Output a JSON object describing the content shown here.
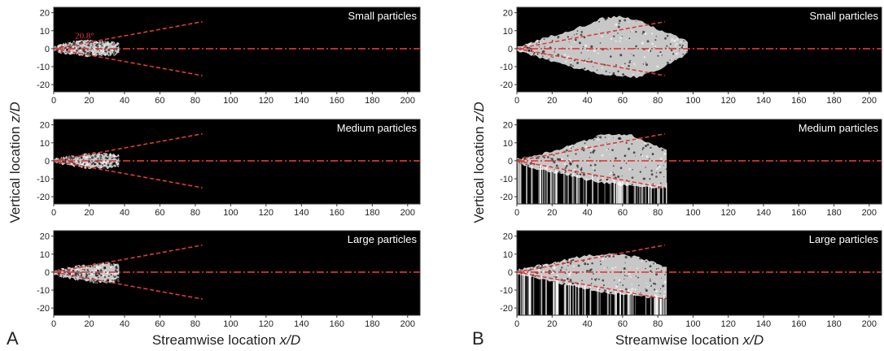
{
  "figure": {
    "panel_letters": [
      "A",
      "B"
    ],
    "xlabel_text": "Streamwise location ",
    "xlabel_var": "x/D",
    "ylabel_text": "Vertical location ",
    "ylabel_var": "z/D",
    "angle_annotation": "20.8°",
    "colors": {
      "background": "#000000",
      "particles": "#ffffff",
      "reference_lines": "#e03a3a"
    }
  },
  "chart_data": [
    {
      "type": "scatter",
      "panel": "A",
      "row": 1,
      "title": "Small particles",
      "x_ticks": [
        0,
        20,
        40,
        60,
        80,
        100,
        120,
        140,
        160,
        180,
        200
      ],
      "y_ticks": [
        20,
        10,
        0,
        -10,
        -20
      ],
      "xlim": [
        0,
        207
      ],
      "ylim": [
        -24,
        23
      ],
      "cloud": {
        "x_start": 0,
        "x_end": 37,
        "upper": [
          1,
          3,
          4,
          5,
          4,
          4,
          3
        ],
        "lower": [
          -1,
          -3,
          -3,
          -4,
          -4,
          -4,
          -3
        ]
      },
      "streaks": {
        "x_end": 0,
        "count": 0
      },
      "spread_lines": {
        "x_end": 84,
        "upper_z": 15,
        "lower_z": -15
      },
      "centerline_z": 0,
      "annotation": "20.8°"
    },
    {
      "type": "scatter",
      "panel": "A",
      "row": 2,
      "title": "Medium particles",
      "x_ticks": [
        0,
        20,
        40,
        60,
        80,
        100,
        120,
        140,
        160,
        180,
        200
      ],
      "y_ticks": [
        20,
        10,
        0,
        -10,
        -20
      ],
      "xlim": [
        0,
        207
      ],
      "ylim": [
        -24,
        23
      ],
      "cloud": {
        "x_start": 0,
        "x_end": 37,
        "upper": [
          1,
          2,
          3,
          4,
          4,
          4,
          3
        ],
        "lower": [
          -1,
          -2,
          -3,
          -4,
          -4,
          -4,
          -3
        ]
      },
      "streaks": {
        "x_end": 0,
        "count": 0
      },
      "spread_lines": {
        "x_end": 84,
        "upper_z": 15,
        "lower_z": -15
      },
      "centerline_z": 0
    },
    {
      "type": "scatter",
      "panel": "A",
      "row": 3,
      "title": "Large particles",
      "x_ticks": [
        0,
        20,
        40,
        60,
        80,
        100,
        120,
        140,
        160,
        180,
        200
      ],
      "y_ticks": [
        20,
        10,
        0,
        -10,
        -20
      ],
      "xlim": [
        0,
        207
      ],
      "ylim": [
        -24,
        23
      ],
      "cloud": {
        "x_start": 0,
        "x_end": 37,
        "upper": [
          1,
          2,
          3,
          4,
          5,
          5,
          4
        ],
        "lower": [
          -1,
          -3,
          -4,
          -5,
          -6,
          -6,
          -5
        ]
      },
      "streaks": {
        "x_end": 0,
        "count": 0
      },
      "spread_lines": {
        "x_end": 84,
        "upper_z": 15,
        "lower_z": -15
      },
      "centerline_z": 0
    },
    {
      "type": "scatter",
      "panel": "B",
      "row": 1,
      "title": "Small particles",
      "x_ticks": [
        0,
        20,
        40,
        60,
        80,
        100,
        120,
        140,
        160,
        180,
        200
      ],
      "y_ticks": [
        20,
        10,
        0,
        -10,
        -20
      ],
      "xlim": [
        0,
        207
      ],
      "ylim": [
        -24,
        23
      ],
      "cloud": {
        "x_start": 0,
        "x_end": 97,
        "upper": [
          1,
          4,
          7,
          10,
          13,
          17,
          18,
          16,
          12,
          8,
          4
        ],
        "lower": [
          -1,
          -4,
          -7,
          -10,
          -12,
          -14,
          -15,
          -16,
          -13,
          -8,
          -3
        ]
      },
      "streaks": {
        "x_end": 0,
        "count": 0
      },
      "spread_lines": {
        "x_end": 84,
        "upper_z": 15,
        "lower_z": -15
      },
      "centerline_z": 0
    },
    {
      "type": "scatter",
      "panel": "B",
      "row": 2,
      "title": "Medium particles",
      "x_ticks": [
        0,
        20,
        40,
        60,
        80,
        100,
        120,
        140,
        160,
        180,
        200
      ],
      "y_ticks": [
        20,
        10,
        0,
        -10,
        -20
      ],
      "xlim": [
        0,
        207
      ],
      "ylim": [
        -24,
        23
      ],
      "cloud": {
        "x_start": 0,
        "x_end": 85,
        "upper": [
          1,
          3,
          5,
          8,
          11,
          14,
          15,
          14,
          10,
          6
        ],
        "lower": [
          -1,
          -4,
          -6,
          -8,
          -10,
          -12,
          -13,
          -14,
          -15,
          -15
        ]
      },
      "streaks": {
        "x_end": 85,
        "count": 70
      },
      "spread_lines": {
        "x_end": 84,
        "upper_z": 15,
        "lower_z": -15
      },
      "centerline_z": 0
    },
    {
      "type": "scatter",
      "panel": "B",
      "row": 3,
      "title": "Large particles",
      "x_ticks": [
        0,
        20,
        40,
        60,
        80,
        100,
        120,
        140,
        160,
        180,
        200
      ],
      "y_ticks": [
        20,
        10,
        0,
        -10,
        -20
      ],
      "xlim": [
        0,
        207
      ],
      "ylim": [
        -24,
        23
      ],
      "cloud": {
        "x_start": 0,
        "x_end": 85,
        "upper": [
          1,
          3,
          5,
          7,
          9,
          10,
          10,
          9,
          6,
          3
        ],
        "lower": [
          -1,
          -3,
          -5,
          -7,
          -9,
          -11,
          -12,
          -13,
          -14,
          -15
        ]
      },
      "streaks": {
        "x_end": 85,
        "count": 80
      },
      "spread_lines": {
        "x_end": 84,
        "upper_z": 15,
        "lower_z": -15
      },
      "centerline_z": 0
    }
  ]
}
